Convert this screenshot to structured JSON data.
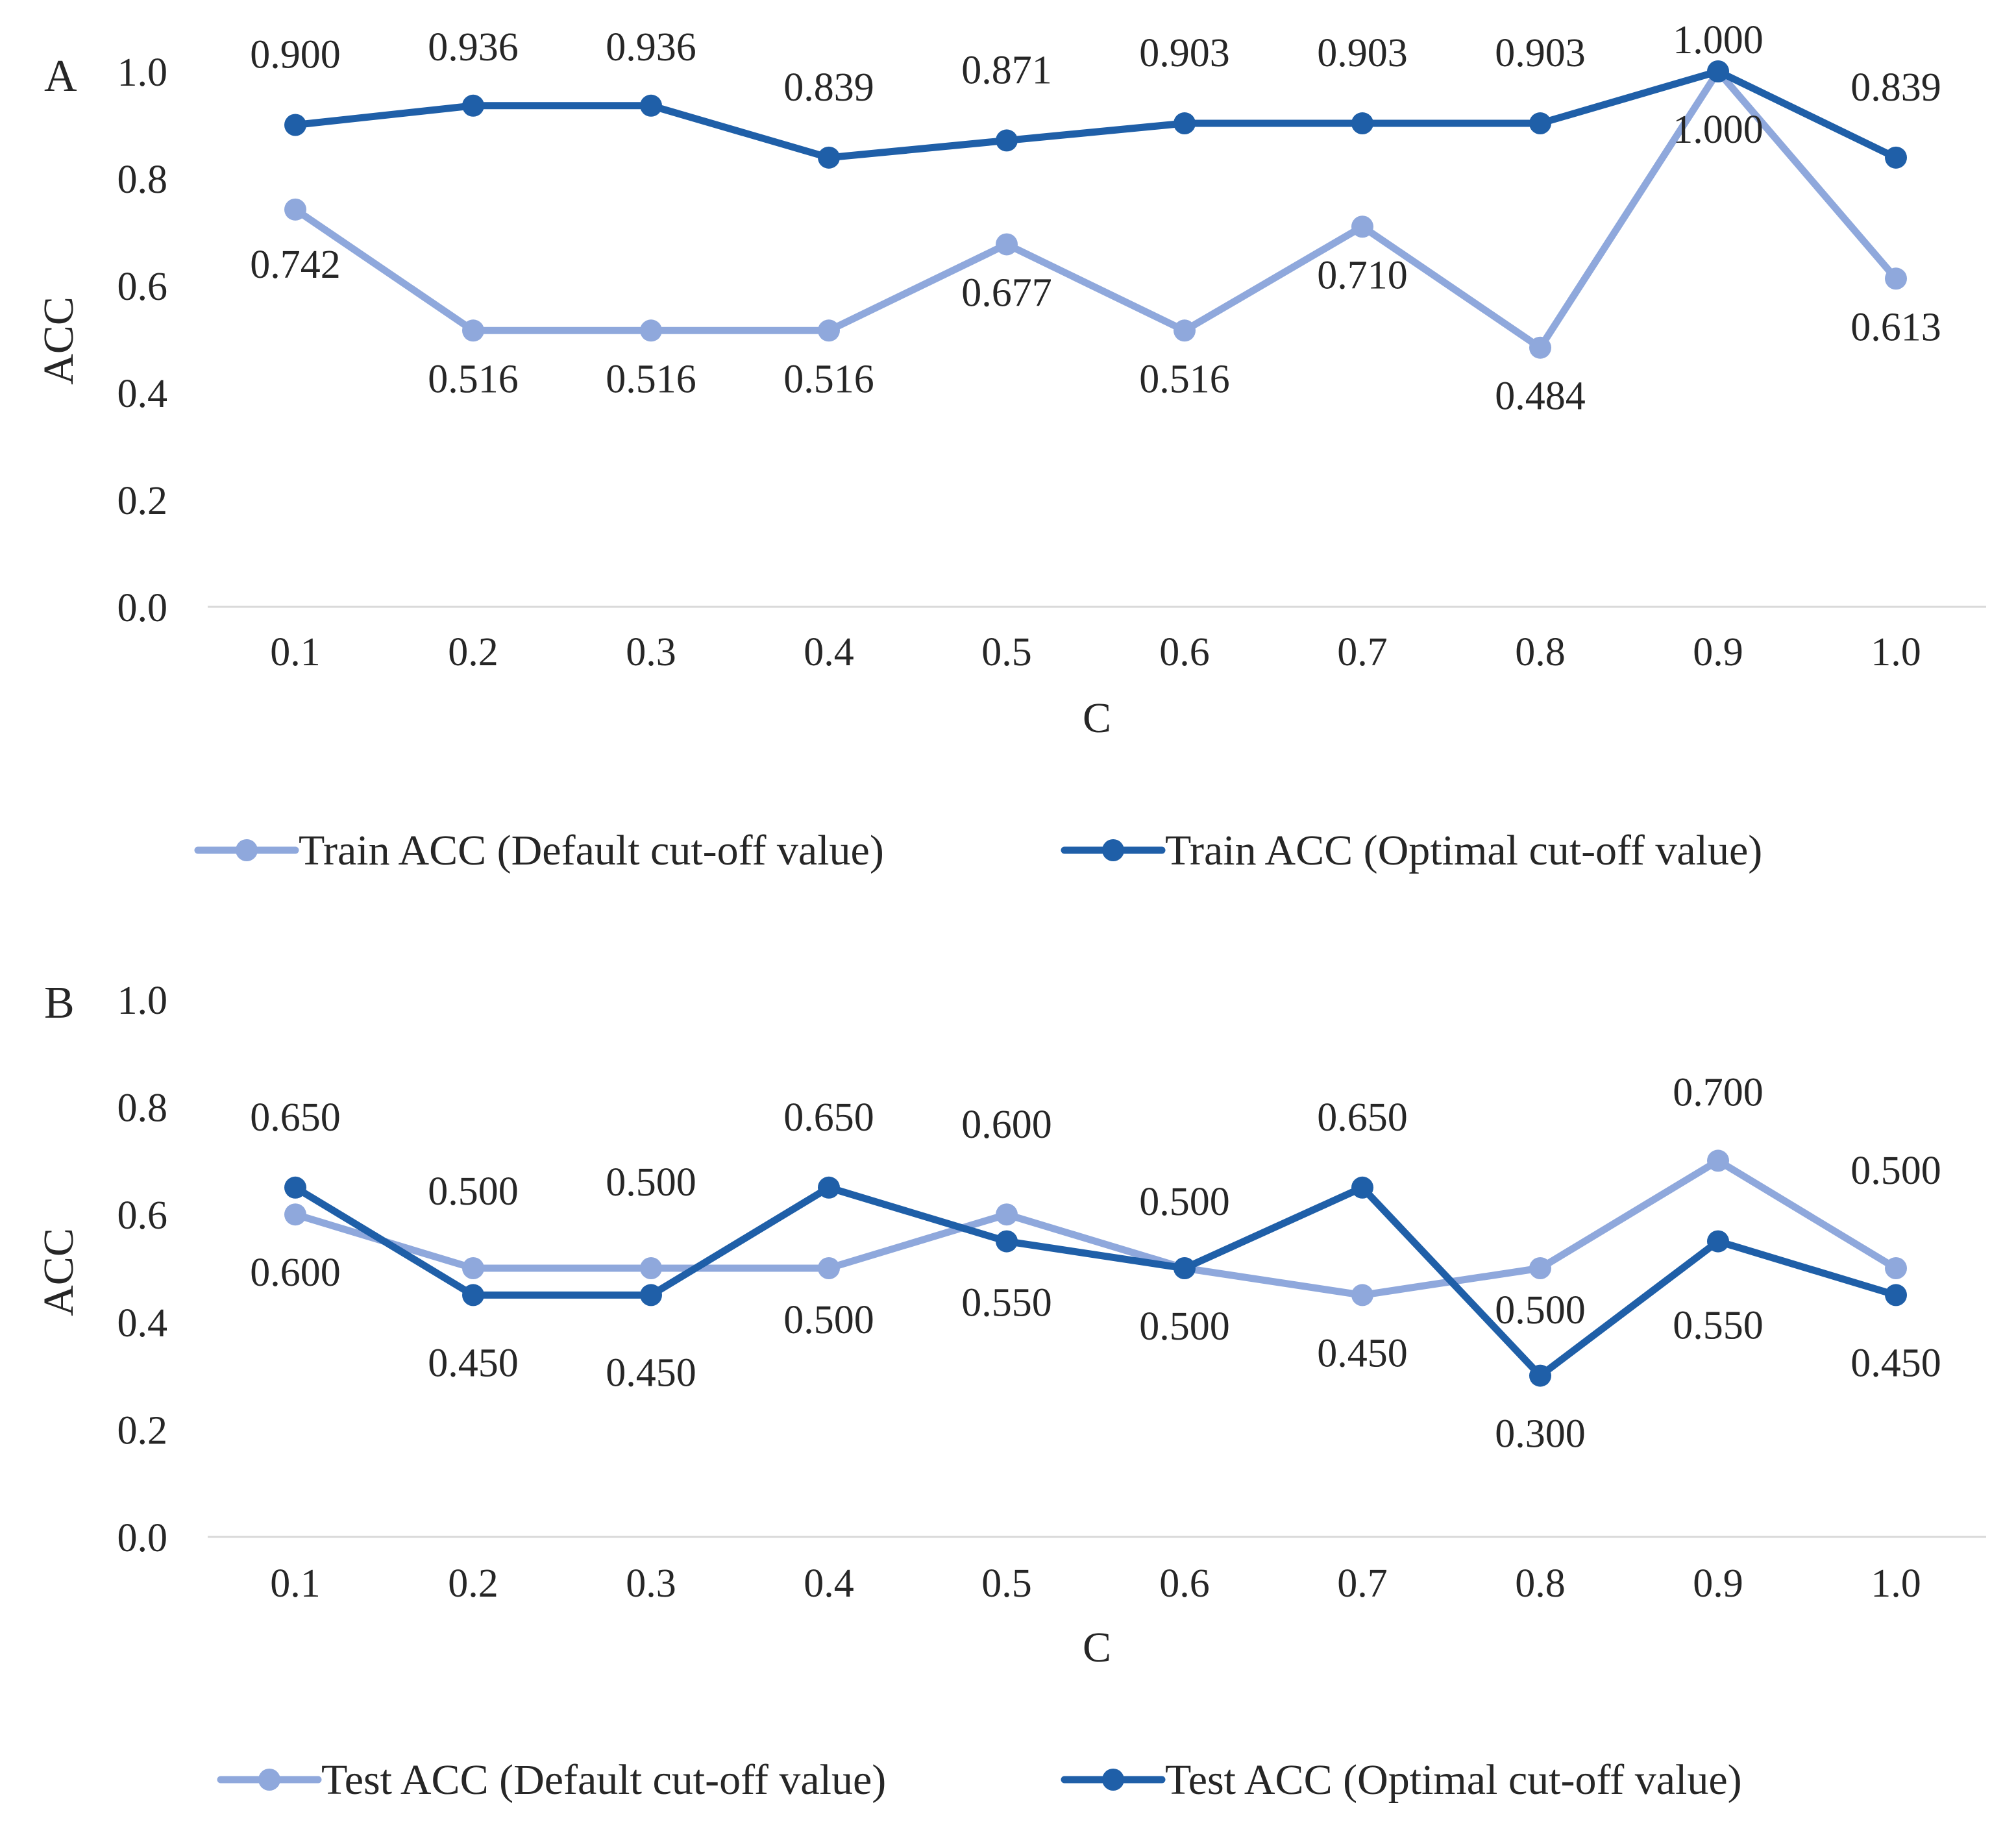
{
  "chart_data": [
    {
      "type": "line",
      "panel_label": "A",
      "xlabel": "C",
      "ylabel": "ACC",
      "categories": [
        "0.1",
        "0.2",
        "0.3",
        "0.4",
        "0.5",
        "0.6",
        "0.7",
        "0.8",
        "0.9",
        "1.0"
      ],
      "yticks": [
        "0.0",
        "0.2",
        "0.4",
        "0.6",
        "0.8",
        "1.0"
      ],
      "ylim": [
        0,
        1
      ],
      "grid": false,
      "legend_position": "bottom",
      "series": [
        {
          "name": "Train ACC (Default cut-off value)",
          "color": "#8fa8dc",
          "values": [
            0.742,
            0.516,
            0.516,
            0.516,
            0.677,
            0.516,
            0.71,
            0.484,
            1.0,
            0.613
          ],
          "labels": [
            "0.742",
            "0.516",
            "0.516",
            "0.516",
            "0.677",
            "0.516",
            "0.710",
            "0.484",
            "1.000",
            "0.613"
          ]
        },
        {
          "name": "Train ACC (Optimal cut-off value)",
          "color": "#1f5fa8",
          "values": [
            0.9,
            0.936,
            0.936,
            0.839,
            0.871,
            0.903,
            0.903,
            0.903,
            1.0,
            0.839
          ],
          "labels": [
            "0.900",
            "0.936",
            "0.936",
            "0.839",
            "0.871",
            "0.903",
            "0.903",
            "0.903",
            "1.000",
            "0.839"
          ]
        }
      ]
    },
    {
      "type": "line",
      "panel_label": "B",
      "xlabel": "C",
      "ylabel": "ACC",
      "categories": [
        "0.1",
        "0.2",
        "0.3",
        "0.4",
        "0.5",
        "0.6",
        "0.7",
        "0.8",
        "0.9",
        "1.0"
      ],
      "yticks": [
        "0.0",
        "0.2",
        "0.4",
        "0.6",
        "0.8",
        "1.0"
      ],
      "ylim": [
        0,
        1
      ],
      "grid": false,
      "legend_position": "bottom",
      "series": [
        {
          "name": "Test ACC (Default cut-off value)",
          "color": "#8fa8dc",
          "values": [
            0.6,
            0.5,
            0.5,
            0.5,
            0.6,
            0.5,
            0.45,
            0.5,
            0.7,
            0.5
          ],
          "labels": [
            "0.600",
            "0.500",
            "0.500",
            "0.500",
            "0.600",
            "0.500",
            "0.450",
            "0.500",
            "0.700",
            "0.500"
          ]
        },
        {
          "name": "Test ACC (Optimal cut-off value)",
          "color": "#1f5fa8",
          "values": [
            0.65,
            0.45,
            0.45,
            0.65,
            0.55,
            0.5,
            0.65,
            0.3,
            0.55,
            0.45
          ],
          "labels": [
            "0.650",
            "0.450",
            "0.450",
            "0.650",
            "0.550",
            "0.500",
            "0.650",
            "0.300",
            "0.550",
            "0.450"
          ]
        }
      ]
    }
  ]
}
